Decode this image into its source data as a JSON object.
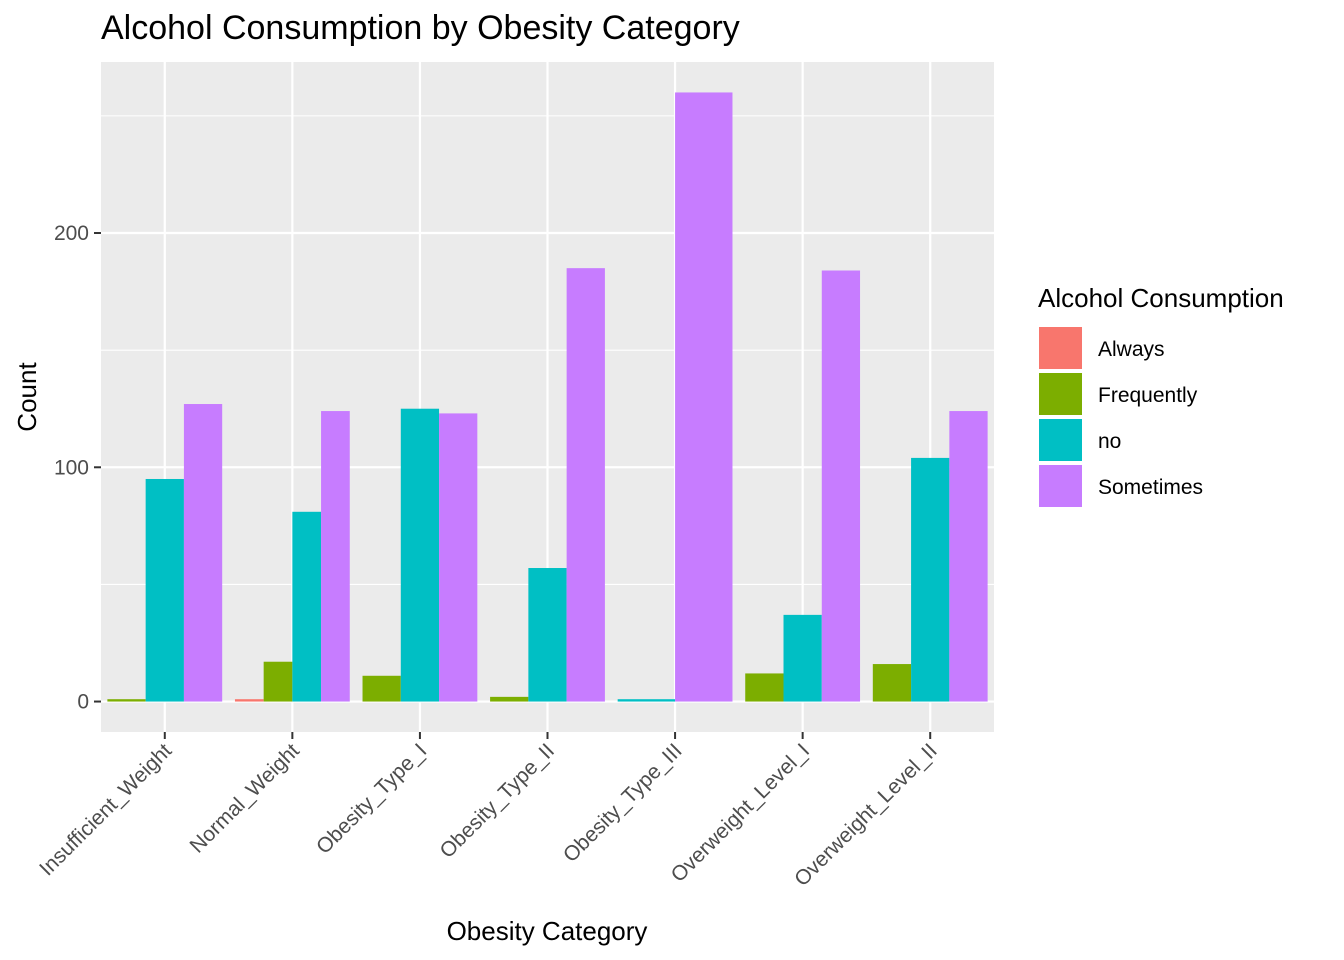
{
  "chart_data": {
    "type": "bar",
    "title": "Alcohol Consumption by Obesity Category",
    "xlabel": "Obesity Category",
    "ylabel": "Count",
    "categories": [
      "Insufficient_Weight",
      "Normal_Weight",
      "Obesity_Type_I",
      "Obesity_Type_II",
      "Obesity_Type_III",
      "Overweight_Level_I",
      "Overweight_Level_II"
    ],
    "series": [
      {
        "name": "Always",
        "color": "#F8766D",
        "values": [
          0,
          1,
          0,
          0,
          0,
          0,
          0
        ]
      },
      {
        "name": "Frequently",
        "color": "#7CAE00",
        "values": [
          1,
          17,
          11,
          2,
          0,
          12,
          16
        ]
      },
      {
        "name": "no",
        "color": "#00BFC4",
        "values": [
          95,
          81,
          125,
          57,
          1,
          37,
          104
        ]
      },
      {
        "name": "Sometimes",
        "color": "#C77CFF",
        "values": [
          127,
          124,
          123,
          185,
          260,
          184,
          124
        ]
      }
    ],
    "present": [
      [
        false,
        true,
        true,
        true
      ],
      [
        true,
        true,
        true,
        true
      ],
      [
        false,
        true,
        true,
        true
      ],
      [
        false,
        true,
        true,
        true
      ],
      [
        false,
        false,
        true,
        true
      ],
      [
        false,
        true,
        true,
        true
      ],
      [
        false,
        true,
        true,
        true
      ]
    ],
    "yticks": [
      0,
      100,
      200
    ],
    "ylim": [
      -13,
      273
    ],
    "legend_title": "Alcohol Consumption",
    "legend_position": "right",
    "grid": true,
    "panel_background": "#EBEBEB",
    "grid_color": "#FFFFFF"
  }
}
